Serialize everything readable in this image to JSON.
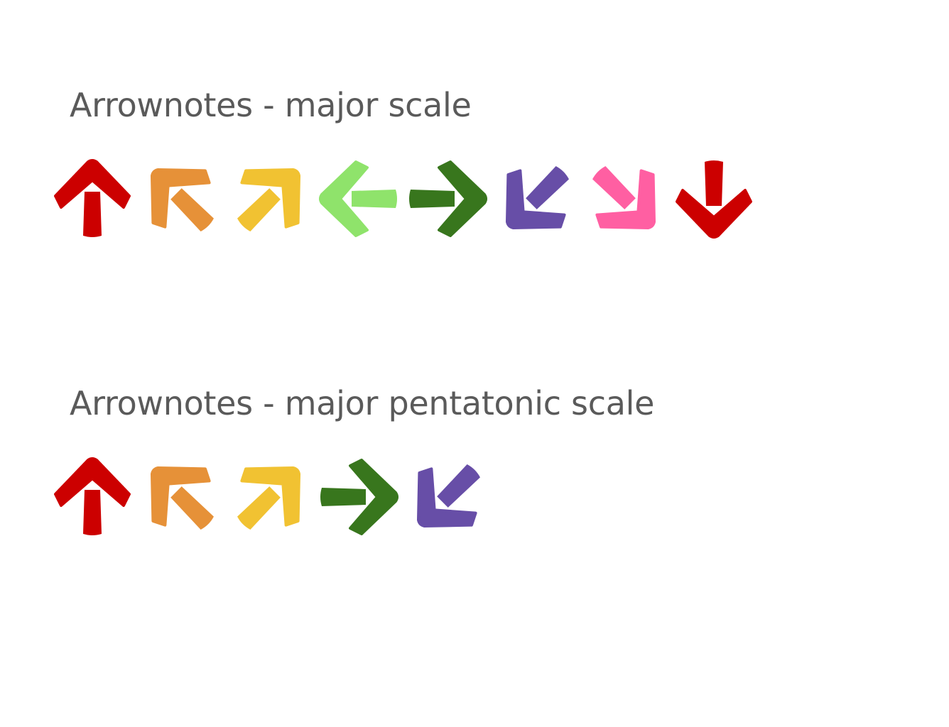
{
  "diagrams": [
    {
      "title": "Arrownotes - major scale",
      "arrows": [
        {
          "direction": "up",
          "color": "#CC0000",
          "icon": "arrow-up-icon"
        },
        {
          "direction": "up-left",
          "color": "#E69138",
          "icon": "arrow-up-left-icon"
        },
        {
          "direction": "up-right",
          "color": "#F1C232",
          "icon": "arrow-up-right-icon"
        },
        {
          "direction": "left",
          "color": "#8FE36B",
          "icon": "arrow-left-icon"
        },
        {
          "direction": "right",
          "color": "#38761D",
          "icon": "arrow-right-icon"
        },
        {
          "direction": "down-left",
          "color": "#674EA7",
          "icon": "arrow-down-left-icon"
        },
        {
          "direction": "down-right",
          "color": "#FF5FA2",
          "icon": "arrow-down-right-icon"
        },
        {
          "direction": "down",
          "color": "#CC0000",
          "icon": "arrow-down-icon"
        }
      ]
    },
    {
      "title": "Arrownotes - major pentatonic scale",
      "arrows": [
        {
          "direction": "up",
          "color": "#CC0000",
          "icon": "arrow-up-icon"
        },
        {
          "direction": "up-left",
          "color": "#E69138",
          "icon": "arrow-up-left-icon"
        },
        {
          "direction": "up-right",
          "color": "#F1C232",
          "icon": "arrow-up-right-icon"
        },
        {
          "direction": "right",
          "color": "#38761D",
          "icon": "arrow-right-icon"
        },
        {
          "direction": "down-left",
          "color": "#674EA7",
          "icon": "arrow-down-left-icon"
        }
      ]
    }
  ]
}
